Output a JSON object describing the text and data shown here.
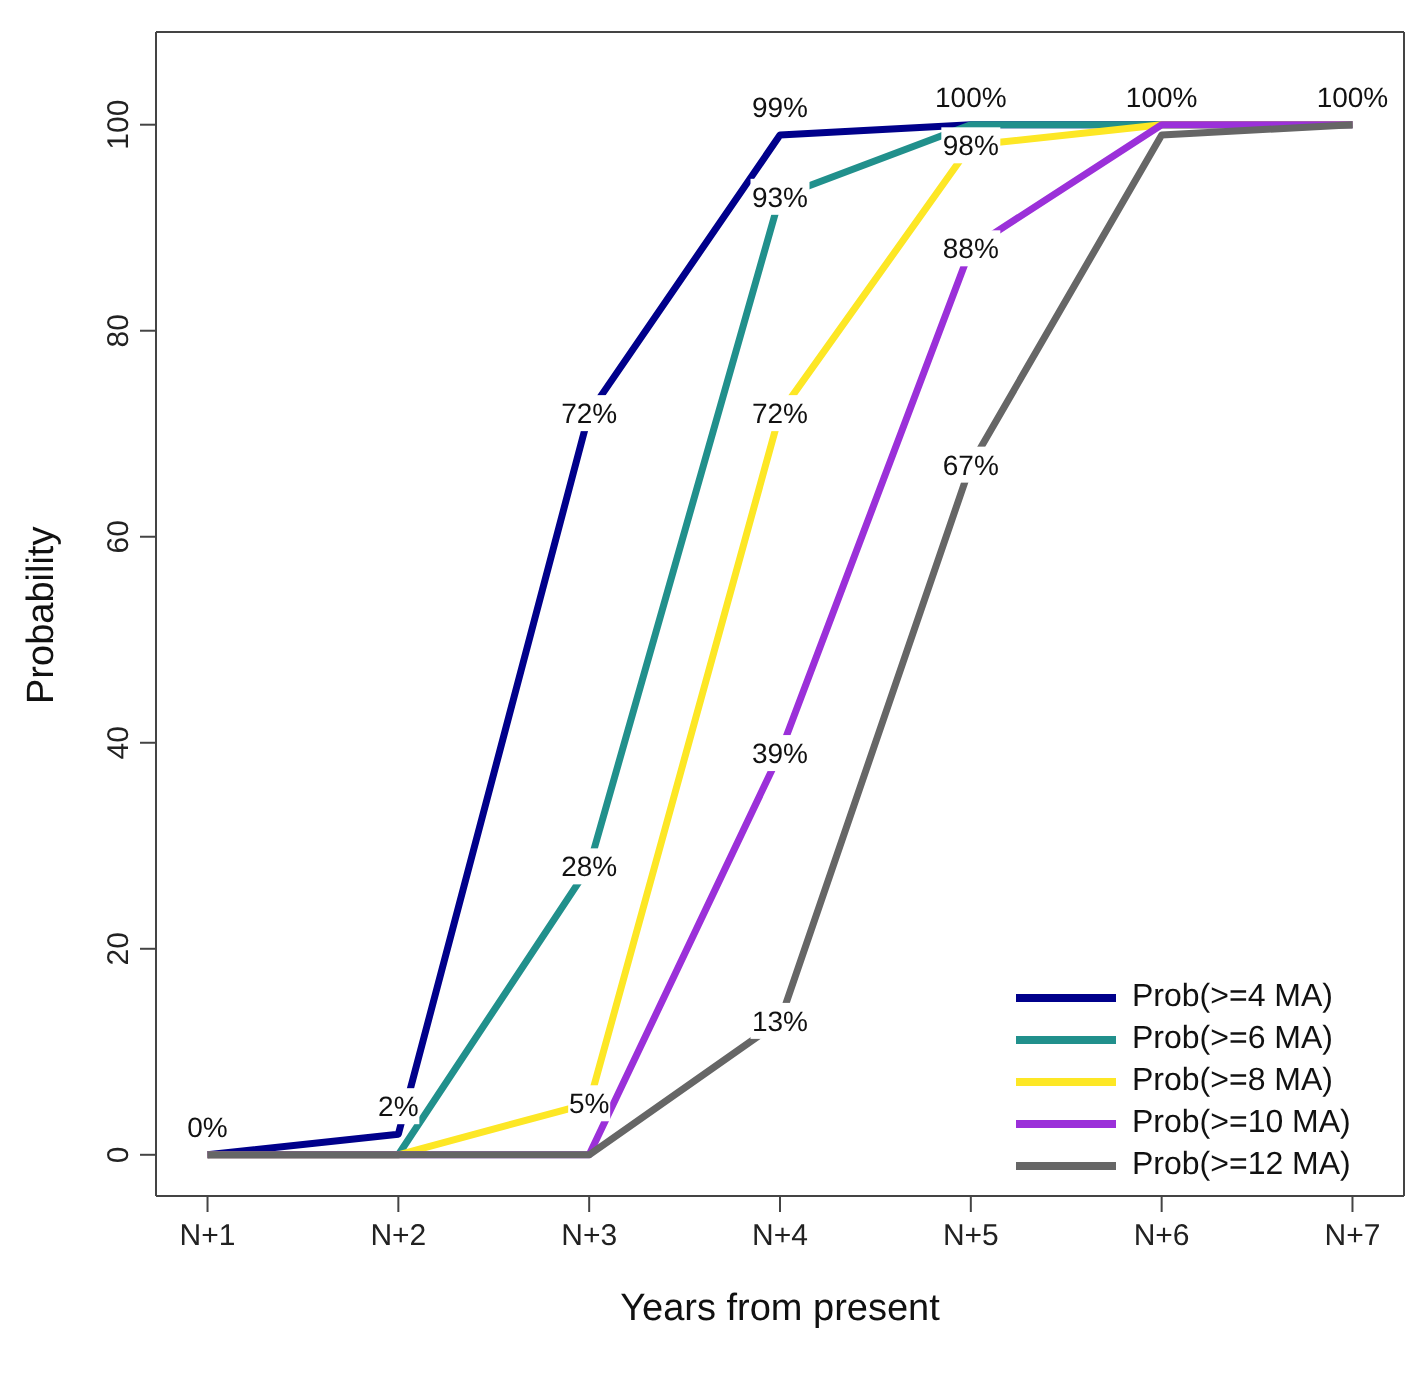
{
  "chart_data": {
    "type": "line",
    "xlabel": "Years from present",
    "ylabel": "Probability",
    "categories": [
      "N+1",
      "N+2",
      "N+3",
      "N+4",
      "N+5",
      "N+6",
      "N+7"
    ],
    "ylim": [
      -4,
      109
    ],
    "yticks": [
      0,
      20,
      40,
      60,
      80,
      100
    ],
    "grid": false,
    "legend": "bottom right",
    "marker": "none",
    "line_style": "solid",
    "series": [
      {
        "name": "Prob(>=4 MA)",
        "color": "#00008b",
        "values": [
          0,
          2,
          72,
          99,
          100,
          100,
          100
        ],
        "value_labels": [
          "0%",
          "2%",
          "72%",
          "99%",
          "100%",
          "100%",
          "100%"
        ]
      },
      {
        "name": "Prob(>=6 MA)",
        "color": "#21908c",
        "values": [
          0,
          0,
          28,
          93,
          100,
          100,
          100
        ],
        "value_labels": [
          null,
          null,
          "28%",
          "93%",
          null,
          null,
          null
        ]
      },
      {
        "name": "Prob(>=8 MA)",
        "color": "#fde725",
        "values": [
          0,
          0,
          5,
          72,
          98,
          100,
          100
        ],
        "value_labels": [
          null,
          null,
          "5%",
          "72%",
          "98%",
          null,
          null
        ]
      },
      {
        "name": "Prob(>=10 MA)",
        "color": "#9b30d9",
        "values": [
          0,
          0,
          0,
          39,
          88,
          100,
          100
        ],
        "value_labels": [
          null,
          null,
          null,
          "39%",
          "88%",
          null,
          null
        ]
      },
      {
        "name": "Prob(>=12 MA)",
        "color": "#666666",
        "values": [
          0,
          0,
          0,
          13,
          67,
          99,
          100
        ],
        "value_labels": [
          null,
          null,
          null,
          "13%",
          "67%",
          null,
          null
        ]
      }
    ]
  }
}
